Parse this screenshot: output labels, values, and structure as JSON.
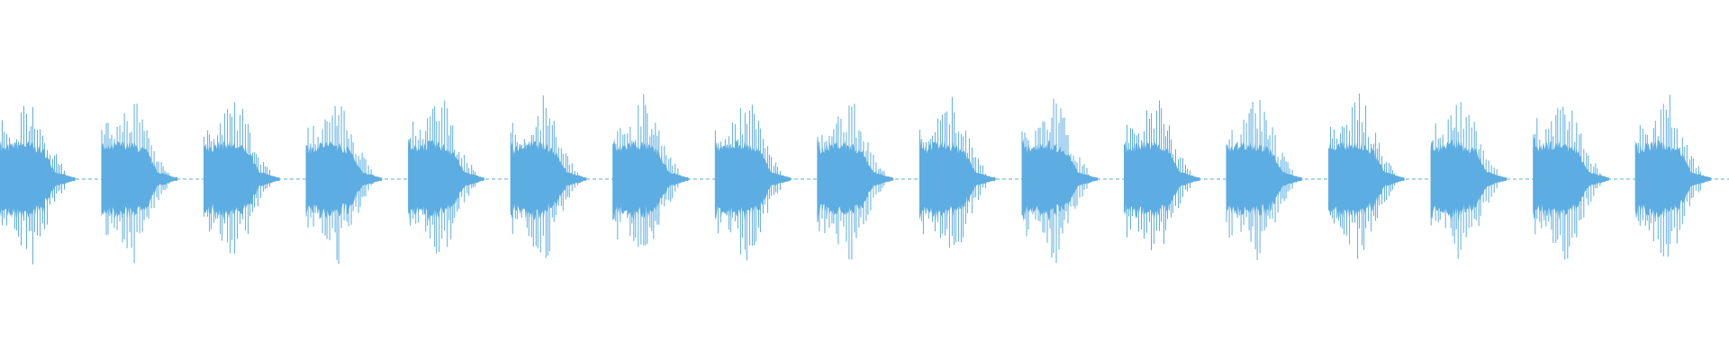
{
  "waveform": {
    "color": "#5dade2",
    "background": "#ffffff",
    "burst_count": 17
  }
}
